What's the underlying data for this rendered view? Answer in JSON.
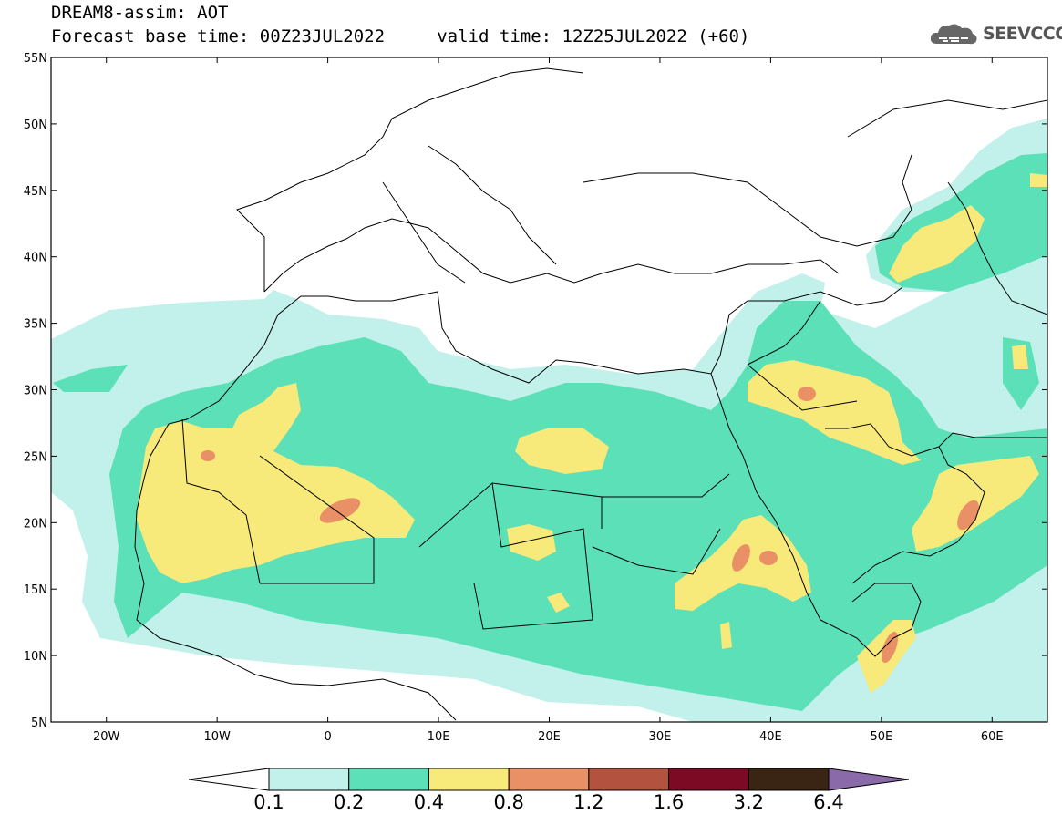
{
  "header": {
    "title_line1": "DREAM8-assim: AOT",
    "title_line2": "Forecast base time: 00Z23JUL2022     valid time: 12Z25JUL2022 (+60)",
    "logo_text": "SEEVCCC"
  },
  "map": {
    "lon_range": [
      -25,
      65
    ],
    "lat_range": [
      5,
      55
    ],
    "lat_ticks": [
      {
        "value": 55,
        "label": "55N"
      },
      {
        "value": 50,
        "label": "50N"
      },
      {
        "value": 45,
        "label": "45N"
      },
      {
        "value": 40,
        "label": "40N"
      },
      {
        "value": 35,
        "label": "35N"
      },
      {
        "value": 30,
        "label": "30N"
      },
      {
        "value": 25,
        "label": "25N"
      },
      {
        "value": 20,
        "label": "20N"
      },
      {
        "value": 15,
        "label": "15N"
      },
      {
        "value": 10,
        "label": "10N"
      },
      {
        "value": 5,
        "label": "5N"
      }
    ],
    "lon_ticks": [
      {
        "value": -20,
        "label": "20W"
      },
      {
        "value": -10,
        "label": "10W"
      },
      {
        "value": 0,
        "label": "0"
      },
      {
        "value": 10,
        "label": "10E"
      },
      {
        "value": 20,
        "label": "20E"
      },
      {
        "value": 30,
        "label": "30E"
      },
      {
        "value": 40,
        "label": "40E"
      },
      {
        "value": 50,
        "label": "50E"
      },
      {
        "value": 60,
        "label": "60E"
      }
    ]
  },
  "colorbar": {
    "colors": [
      "#ffffff",
      "#c2f0ea",
      "#5ce0b8",
      "#f7e97a",
      "#e99066",
      "#b3523f",
      "#7d0a25",
      "#3a2514",
      "#8a6aa8"
    ],
    "labels": [
      "0.1",
      "0.2",
      "0.4",
      "0.8",
      "1.2",
      "1.6",
      "3.2",
      "6.4"
    ]
  }
}
